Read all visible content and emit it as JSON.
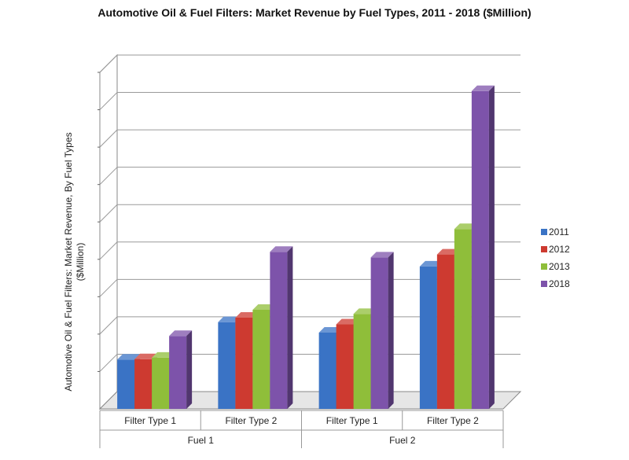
{
  "chart_data": {
    "type": "bar",
    "title": "Automotive Oil & Fuel Filters: Market Revenue by Fuel Types, 2011 - 2018 ($Million)",
    "ylabel_lines": [
      "Automotive Oil & Fuel Filters: Market Revenue, By Fuel Types",
      "($Million)"
    ],
    "xlabel": "",
    "ylim": [
      0,
      900
    ],
    "y_ticks_labeled": false,
    "grid": true,
    "legend_position": "right",
    "categories": [
      "Filter Type 1",
      "Filter Type 2",
      "Filter Type 1",
      "Filter Type 2"
    ],
    "groups": [
      {
        "label": "Fuel 1",
        "categories": [
          0,
          1
        ]
      },
      {
        "label": "Fuel 2",
        "categories": [
          2,
          3
        ]
      }
    ],
    "series": [
      {
        "name": "2011",
        "color": "#3a73c5",
        "values": [
          132,
          232,
          204,
          381
        ]
      },
      {
        "name": "2012",
        "color": "#cd3a30",
        "values": [
          133,
          244,
          226,
          413
        ]
      },
      {
        "name": "2013",
        "color": "#8fbe3a",
        "values": [
          137,
          265,
          254,
          481
        ]
      },
      {
        "name": "2018",
        "color": "#7d53aa",
        "values": [
          195,
          420,
          405,
          850
        ]
      }
    ]
  }
}
